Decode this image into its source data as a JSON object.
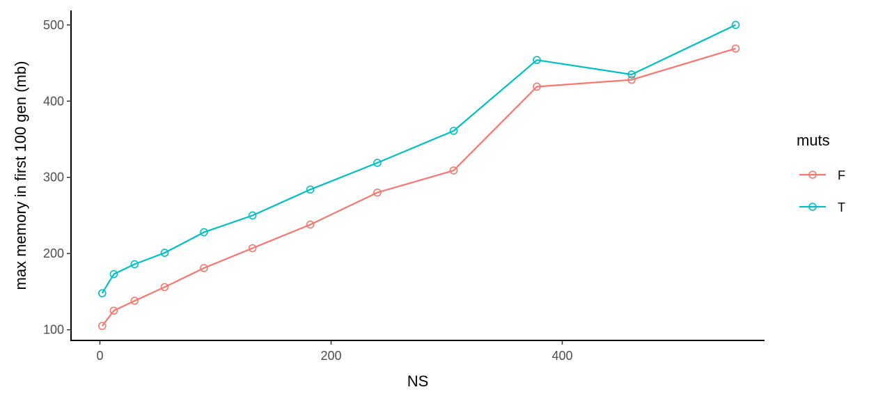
{
  "chart_data": {
    "type": "line",
    "xlabel": "NS",
    "ylabel": "max memory in first 100 gen (mb)",
    "xlim": [
      -25,
      575
    ],
    "ylim": [
      86,
      519
    ],
    "x_ticks": [
      0,
      200,
      400
    ],
    "y_ticks": [
      100,
      200,
      300,
      400,
      500
    ],
    "grid": false,
    "legend": {
      "title": "muts",
      "position": "right",
      "entries": [
        "F",
        "T"
      ]
    },
    "series": [
      {
        "name": "F",
        "color": "#F8766D",
        "x": [
          2,
          12,
          30,
          56,
          90,
          132,
          182,
          240,
          306,
          378,
          460,
          550
        ],
        "y": [
          105,
          125,
          138,
          156,
          181,
          207,
          238,
          280,
          309,
          419,
          428,
          469
        ]
      },
      {
        "name": "T",
        "color": "#00BFC4",
        "x": [
          2,
          12,
          30,
          56,
          90,
          132,
          182,
          240,
          306,
          378,
          460,
          550
        ],
        "y": [
          148,
          173,
          186,
          201,
          228,
          250,
          284,
          319,
          361,
          454,
          435,
          500
        ]
      }
    ]
  }
}
